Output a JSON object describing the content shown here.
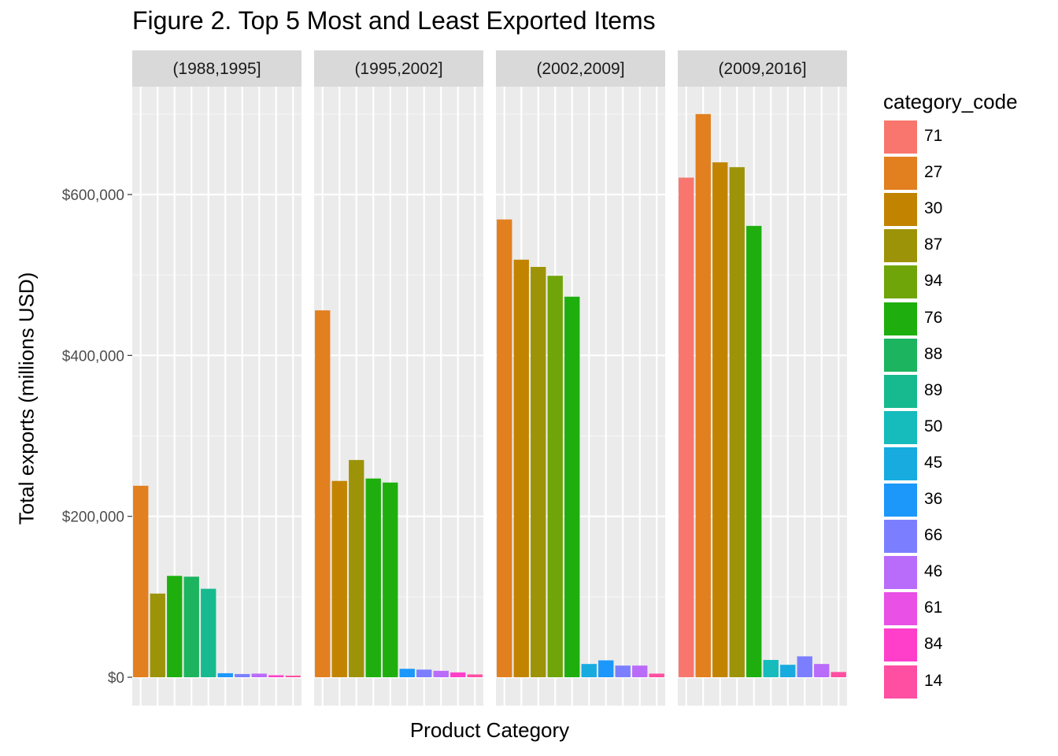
{
  "chart_data": {
    "type": "bar",
    "title": "Figure 2. Top 5 Most and Least Exported Items",
    "xlabel": "Product Category",
    "ylabel": "Total exports (millions USD)",
    "ylim": [
      0,
      700000
    ],
    "y_ticks": [
      0,
      200000,
      400000,
      600000
    ],
    "y_tick_labels": [
      "$0",
      "$200,000",
      "$400,000",
      "$600,000"
    ],
    "grid": true,
    "legend_title": "category_code",
    "legend_position": "right",
    "legend": [
      {
        "code": "71",
        "color": "#F8766D"
      },
      {
        "code": "27",
        "color": "#E27F1F"
      },
      {
        "code": "30",
        "color": "#C28400"
      },
      {
        "code": "87",
        "color": "#9D9308"
      },
      {
        "code": "94",
        "color": "#70A50A"
      },
      {
        "code": "76",
        "color": "#1EAF0E"
      },
      {
        "code": "88",
        "color": "#1CB45F"
      },
      {
        "code": "89",
        "color": "#17BA8F"
      },
      {
        "code": "50",
        "color": "#16BBBC"
      },
      {
        "code": "45",
        "color": "#17ABE0"
      },
      {
        "code": "36",
        "color": "#1C97FA"
      },
      {
        "code": "66",
        "color": "#7B7FFF"
      },
      {
        "code": "46",
        "color": "#B96BFA"
      },
      {
        "code": "61",
        "color": "#E950E5"
      },
      {
        "code": "84",
        "color": "#FF3FCA"
      },
      {
        "code": "14",
        "color": "#FF4FA2"
      }
    ],
    "panels": [
      {
        "label": "(1988,1995]",
        "bars": [
          {
            "code": "27",
            "value": 238000
          },
          {
            "code": "87",
            "value": 104000
          },
          {
            "code": "76",
            "value": 126000
          },
          {
            "code": "88",
            "value": 125000
          },
          {
            "code": "89",
            "value": 110000
          },
          {
            "code": "36",
            "value": 5000
          },
          {
            "code": "66",
            "value": 4000
          },
          {
            "code": "46",
            "value": 4500
          },
          {
            "code": "84",
            "value": 2500
          },
          {
            "code": "14",
            "value": 2000
          }
        ]
      },
      {
        "label": "(1995,2002]",
        "bars": [
          {
            "code": "27",
            "value": 456000
          },
          {
            "code": "30",
            "value": 244000
          },
          {
            "code": "87",
            "value": 270000
          },
          {
            "code": "76",
            "value": 247000
          },
          {
            "code": "76",
            "value": 242000
          },
          {
            "code": "36",
            "value": 10500
          },
          {
            "code": "66",
            "value": 9500
          },
          {
            "code": "46",
            "value": 8000
          },
          {
            "code": "84",
            "value": 6000
          },
          {
            "code": "14",
            "value": 3500
          }
        ]
      },
      {
        "label": "(2002,2009]",
        "bars": [
          {
            "code": "27",
            "value": 569000
          },
          {
            "code": "30",
            "value": 519000
          },
          {
            "code": "87",
            "value": 510000
          },
          {
            "code": "94",
            "value": 499000
          },
          {
            "code": "76",
            "value": 473000
          },
          {
            "code": "45",
            "value": 16500
          },
          {
            "code": "36",
            "value": 21000
          },
          {
            "code": "66",
            "value": 14500
          },
          {
            "code": "46",
            "value": 14500
          },
          {
            "code": "14",
            "value": 4500
          }
        ]
      },
      {
        "label": "(2009,2016]",
        "bars": [
          {
            "code": "71",
            "value": 621000
          },
          {
            "code": "27",
            "value": 700000
          },
          {
            "code": "30",
            "value": 640000
          },
          {
            "code": "87",
            "value": 634000
          },
          {
            "code": "76",
            "value": 561000
          },
          {
            "code": "50",
            "value": 21500
          },
          {
            "code": "45",
            "value": 15500
          },
          {
            "code": "66",
            "value": 26000
          },
          {
            "code": "46",
            "value": 16500
          },
          {
            "code": "14",
            "value": 6500
          }
        ]
      }
    ]
  }
}
